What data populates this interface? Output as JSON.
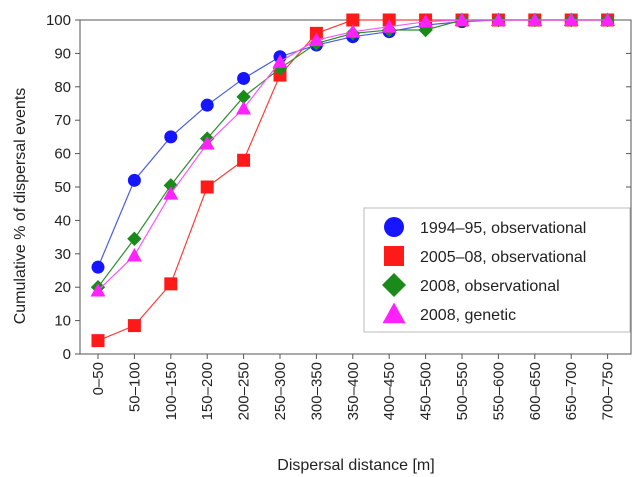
{
  "chart_data": {
    "type": "line",
    "xlabel": "Dispersal distance [m]",
    "ylabel": "Cumulative % of dispersal events",
    "ylim": [
      0,
      100
    ],
    "yticks": [
      0,
      10,
      20,
      30,
      40,
      50,
      60,
      70,
      80,
      90,
      100
    ],
    "grid": false,
    "legend_position": "right",
    "categories": [
      "0–50",
      "50–100",
      "100–150",
      "150–200",
      "200–250",
      "250–300",
      "300–350",
      "350–400",
      "400–450",
      "450–500",
      "500–550",
      "550–600",
      "600–650",
      "650–700",
      "700–750"
    ],
    "series": [
      {
        "name": "1994–95, observational",
        "color": "#1515ff",
        "line_color": "#4a5de0",
        "marker": "circle",
        "values": [
          26,
          52,
          65,
          74.5,
          82.5,
          89,
          92.5,
          95,
          96.5,
          98.5,
          99.5,
          100,
          100,
          100,
          100
        ]
      },
      {
        "name": "2005–08, observational",
        "color": "#ff1a1a",
        "line_color": "#ff3b3b",
        "marker": "square",
        "values": [
          4,
          8.5,
          21,
          50,
          58,
          83.5,
          96,
          100,
          100,
          100,
          100,
          100,
          100,
          100,
          100
        ]
      },
      {
        "name": "2008, observational",
        "color": "#1a8a1a",
        "line_color": "#2e8b2e",
        "marker": "diamond",
        "values": [
          20,
          34.5,
          50.5,
          64.5,
          77,
          85.5,
          93,
          96,
          97,
          97,
          100,
          100,
          100,
          100,
          100
        ]
      },
      {
        "name": "2008, genetic",
        "color": "#ff22ff",
        "line_color": "#ff55ff",
        "marker": "triangle",
        "values": [
          19,
          29.5,
          48,
          63,
          73.5,
          87.5,
          94,
          96.5,
          98,
          99.5,
          100,
          100,
          100,
          100,
          100
        ]
      }
    ]
  }
}
